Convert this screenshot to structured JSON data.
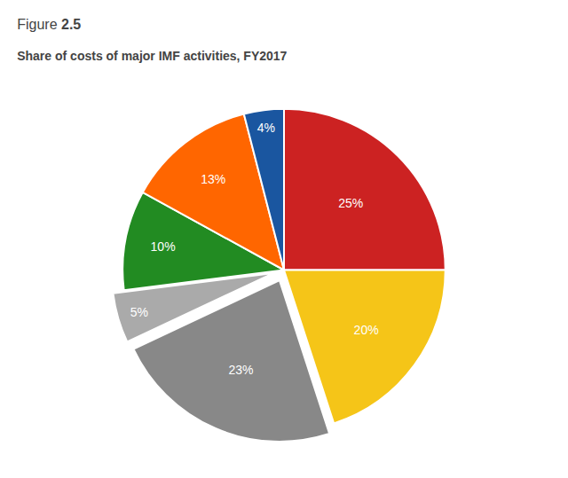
{
  "chart_data": {
    "type": "pie",
    "title": "Figure 2.5",
    "subtitle": "Share of costs of major IMF activities, FY2017",
    "values": [
      25,
      20,
      23,
      5,
      10,
      13,
      4
    ],
    "value_labels": [
      "25%",
      "20%",
      "23%",
      "5%",
      "10%",
      "13%",
      "4%"
    ],
    "colors": [
      "#cc2222",
      "#f5c518",
      "#888888",
      "#aaaaaa",
      "#228B22",
      "#ff6600",
      "#1a56a0"
    ],
    "data_labels": true
  }
}
